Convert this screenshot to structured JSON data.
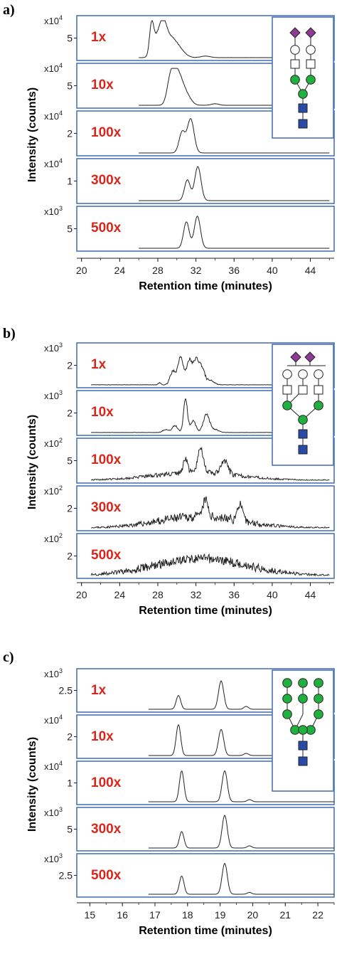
{
  "figure": {
    "panels": [
      {
        "label": "a)",
        "ylabel": "Intensity (counts)",
        "xlabel": "Retention time (minutes)",
        "x_ticks": [
          "20",
          "24",
          "28",
          "32",
          "36",
          "40",
          "44"
        ],
        "xlim": [
          19.5,
          46.5
        ],
        "rows": [
          {
            "dilution": "1x",
            "multiplier_base": "x10",
            "multiplier_exp": "4",
            "ytick": "5"
          },
          {
            "dilution": "10x",
            "multiplier_base": "x10",
            "multiplier_exp": "4",
            "ytick": "5"
          },
          {
            "dilution": "100x",
            "multiplier_base": "x10",
            "multiplier_exp": "4",
            "ytick": "2"
          },
          {
            "dilution": "300x",
            "multiplier_base": "x10",
            "multiplier_exp": "4",
            "ytick": "1"
          },
          {
            "dilution": "500x",
            "multiplier_base": "x10",
            "multiplier_exp": "3",
            "ytick": "5"
          }
        ],
        "glycan_icon": "sialylated-biantennary-glycan-icon"
      },
      {
        "label": "b)",
        "ylabel": "Intensity (counts)",
        "xlabel": "Retention time (minutes)",
        "x_ticks": [
          "20",
          "24",
          "28",
          "32",
          "36",
          "40",
          "44"
        ],
        "xlim": [
          19.5,
          46.5
        ],
        "rows": [
          {
            "dilution": "1x",
            "multiplier_base": "x10",
            "multiplier_exp": "3",
            "ytick": "2"
          },
          {
            "dilution": "10x",
            "multiplier_base": "x10",
            "multiplier_exp": "3",
            "ytick": "2"
          },
          {
            "dilution": "100x",
            "multiplier_base": "x10",
            "multiplier_exp": "2",
            "ytick": "5"
          },
          {
            "dilution": "300x",
            "multiplier_base": "x10",
            "multiplier_exp": "2",
            "ytick": "2"
          },
          {
            "dilution": "500x",
            "multiplier_base": "x10",
            "multiplier_exp": "2",
            "ytick": "2"
          }
        ],
        "glycan_icon": "sialylated-triantennary-glycan-icon"
      },
      {
        "label": "c)",
        "ylabel": "Intensity (counts)",
        "xlabel": "Retention time (minutes)",
        "x_ticks": [
          "15",
          "16",
          "17",
          "18",
          "19",
          "20",
          "21",
          "22"
        ],
        "xlim": [
          14.6,
          22.5
        ],
        "rows": [
          {
            "dilution": "1x",
            "multiplier_base": "x10",
            "multiplier_exp": "3",
            "ytick": "2.5"
          },
          {
            "dilution": "10x",
            "multiplier_base": "x10",
            "multiplier_exp": "4",
            "ytick": "2"
          },
          {
            "dilution": "100x",
            "multiplier_base": "x10",
            "multiplier_exp": "4",
            "ytick": "1"
          },
          {
            "dilution": "300x",
            "multiplier_base": "x10",
            "multiplier_exp": "3",
            "ytick": "5"
          },
          {
            "dilution": "500x",
            "multiplier_base": "x10",
            "multiplier_exp": "3",
            "ytick": "2.5"
          }
        ],
        "glycan_icon": "high-mannose-glycan-icon"
      }
    ]
  },
  "colors": {
    "frame": "#4a74b8",
    "dilution_label": "#d9261c",
    "trace": "#222222",
    "sialic_acid": "#8e3a96",
    "mannose": "#20b040",
    "glcnac": "#2b4aa8"
  },
  "chart_data": [
    {
      "type": "line",
      "panel": "a",
      "x_unit": "minutes",
      "series": [
        {
          "name": "1x",
          "x": [
            26.8,
            27.3,
            27.6,
            28.0,
            28.5,
            29.0,
            29.5,
            30.0,
            31.0,
            33.0
          ],
          "y": [
            0.02,
            0.85,
            0.55,
            0.75,
            0.65,
            0.6,
            0.45,
            0.3,
            0.12,
            0.04
          ]
        },
        {
          "name": "10x",
          "x": [
            28.8,
            29.3,
            29.8,
            30.3,
            30.8,
            31.5,
            33.5
          ],
          "y": [
            0.02,
            0.6,
            0.85,
            0.65,
            0.35,
            0.08,
            0.05
          ]
        },
        {
          "name": "100x",
          "x": [
            29.5,
            30.5,
            31.0,
            31.5,
            32.0,
            33.0
          ],
          "y": [
            0.02,
            0.55,
            0.3,
            0.9,
            0.15,
            0.01
          ]
        },
        {
          "name": "300x",
          "x": [
            30.0,
            31.0,
            31.5,
            32.2,
            33.0
          ],
          "y": [
            0.02,
            0.55,
            0.2,
            0.9,
            0.01
          ]
        },
        {
          "name": "500x",
          "x": [
            30.0,
            31.0,
            31.5,
            32.2,
            33.0
          ],
          "y": [
            0.02,
            0.7,
            0.2,
            0.85,
            0.01
          ]
        }
      ]
    },
    {
      "type": "line",
      "panel": "b",
      "x_unit": "minutes",
      "series": [
        {
          "name": "1x",
          "x": [
            29.0,
            29.8,
            30.5,
            31.2,
            31.8,
            32.5,
            33.2,
            35.0
          ],
          "y": [
            0.05,
            0.5,
            0.85,
            0.45,
            0.8,
            0.7,
            0.3,
            0.03
          ]
        },
        {
          "name": "10x",
          "x": [
            28.5,
            29.5,
            30.8,
            31.5,
            32.1,
            33.0,
            34.0
          ],
          "y": [
            0.03,
            0.15,
            0.9,
            0.3,
            0.4,
            0.55,
            0.05
          ]
        },
        {
          "name": "100x",
          "x": [
            24.0,
            28.5,
            30.8,
            31.5,
            32.4,
            33.5,
            35.0,
            38.0,
            42.0
          ],
          "y": [
            0.05,
            0.15,
            0.5,
            0.3,
            0.75,
            0.3,
            0.45,
            0.15,
            0.03
          ]
        },
        {
          "name": "300x",
          "x": [
            24.0,
            28.0,
            31.0,
            33.0,
            34.5,
            36.5,
            38.5,
            41.0
          ],
          "y": [
            0.02,
            0.25,
            0.45,
            0.8,
            0.45,
            0.75,
            0.3,
            0.03
          ]
        },
        {
          "name": "500x",
          "x": [
            24.5,
            27.5,
            30.0,
            33.0,
            35.5,
            38.0,
            41.0
          ],
          "y": [
            0.05,
            0.35,
            0.45,
            0.65,
            0.5,
            0.3,
            0.05
          ]
        }
      ]
    },
    {
      "type": "line",
      "panel": "c",
      "x_unit": "minutes",
      "series": [
        {
          "name": "1x",
          "x": [
            17.0,
            17.72,
            18.5,
            19.03,
            19.55,
            19.8,
            20.5
          ],
          "y": [
            0.0,
            0.4,
            0.02,
            0.8,
            0.02,
            0.08,
            0.0
          ]
        },
        {
          "name": "10x",
          "x": [
            17.0,
            17.72,
            18.5,
            19.03,
            19.55,
            19.8,
            20.5
          ],
          "y": [
            0.0,
            0.85,
            0.02,
            0.75,
            0.02,
            0.06,
            0.0
          ]
        },
        {
          "name": "100x",
          "x": [
            17.0,
            17.82,
            18.5,
            19.14,
            19.7,
            19.9,
            20.5
          ],
          "y": [
            0.0,
            0.85,
            0.02,
            0.85,
            0.02,
            0.06,
            0.0
          ]
        },
        {
          "name": "300x",
          "x": [
            17.0,
            17.82,
            18.5,
            19.14,
            19.7,
            19.9,
            20.5
          ],
          "y": [
            0.0,
            0.45,
            0.02,
            0.9,
            0.02,
            0.06,
            0.0
          ]
        },
        {
          "name": "500x",
          "x": [
            17.0,
            17.82,
            18.5,
            19.14,
            19.7,
            19.9,
            20.5
          ],
          "y": [
            0.0,
            0.5,
            0.02,
            0.85,
            0.02,
            0.05,
            0.0
          ]
        }
      ]
    }
  ]
}
